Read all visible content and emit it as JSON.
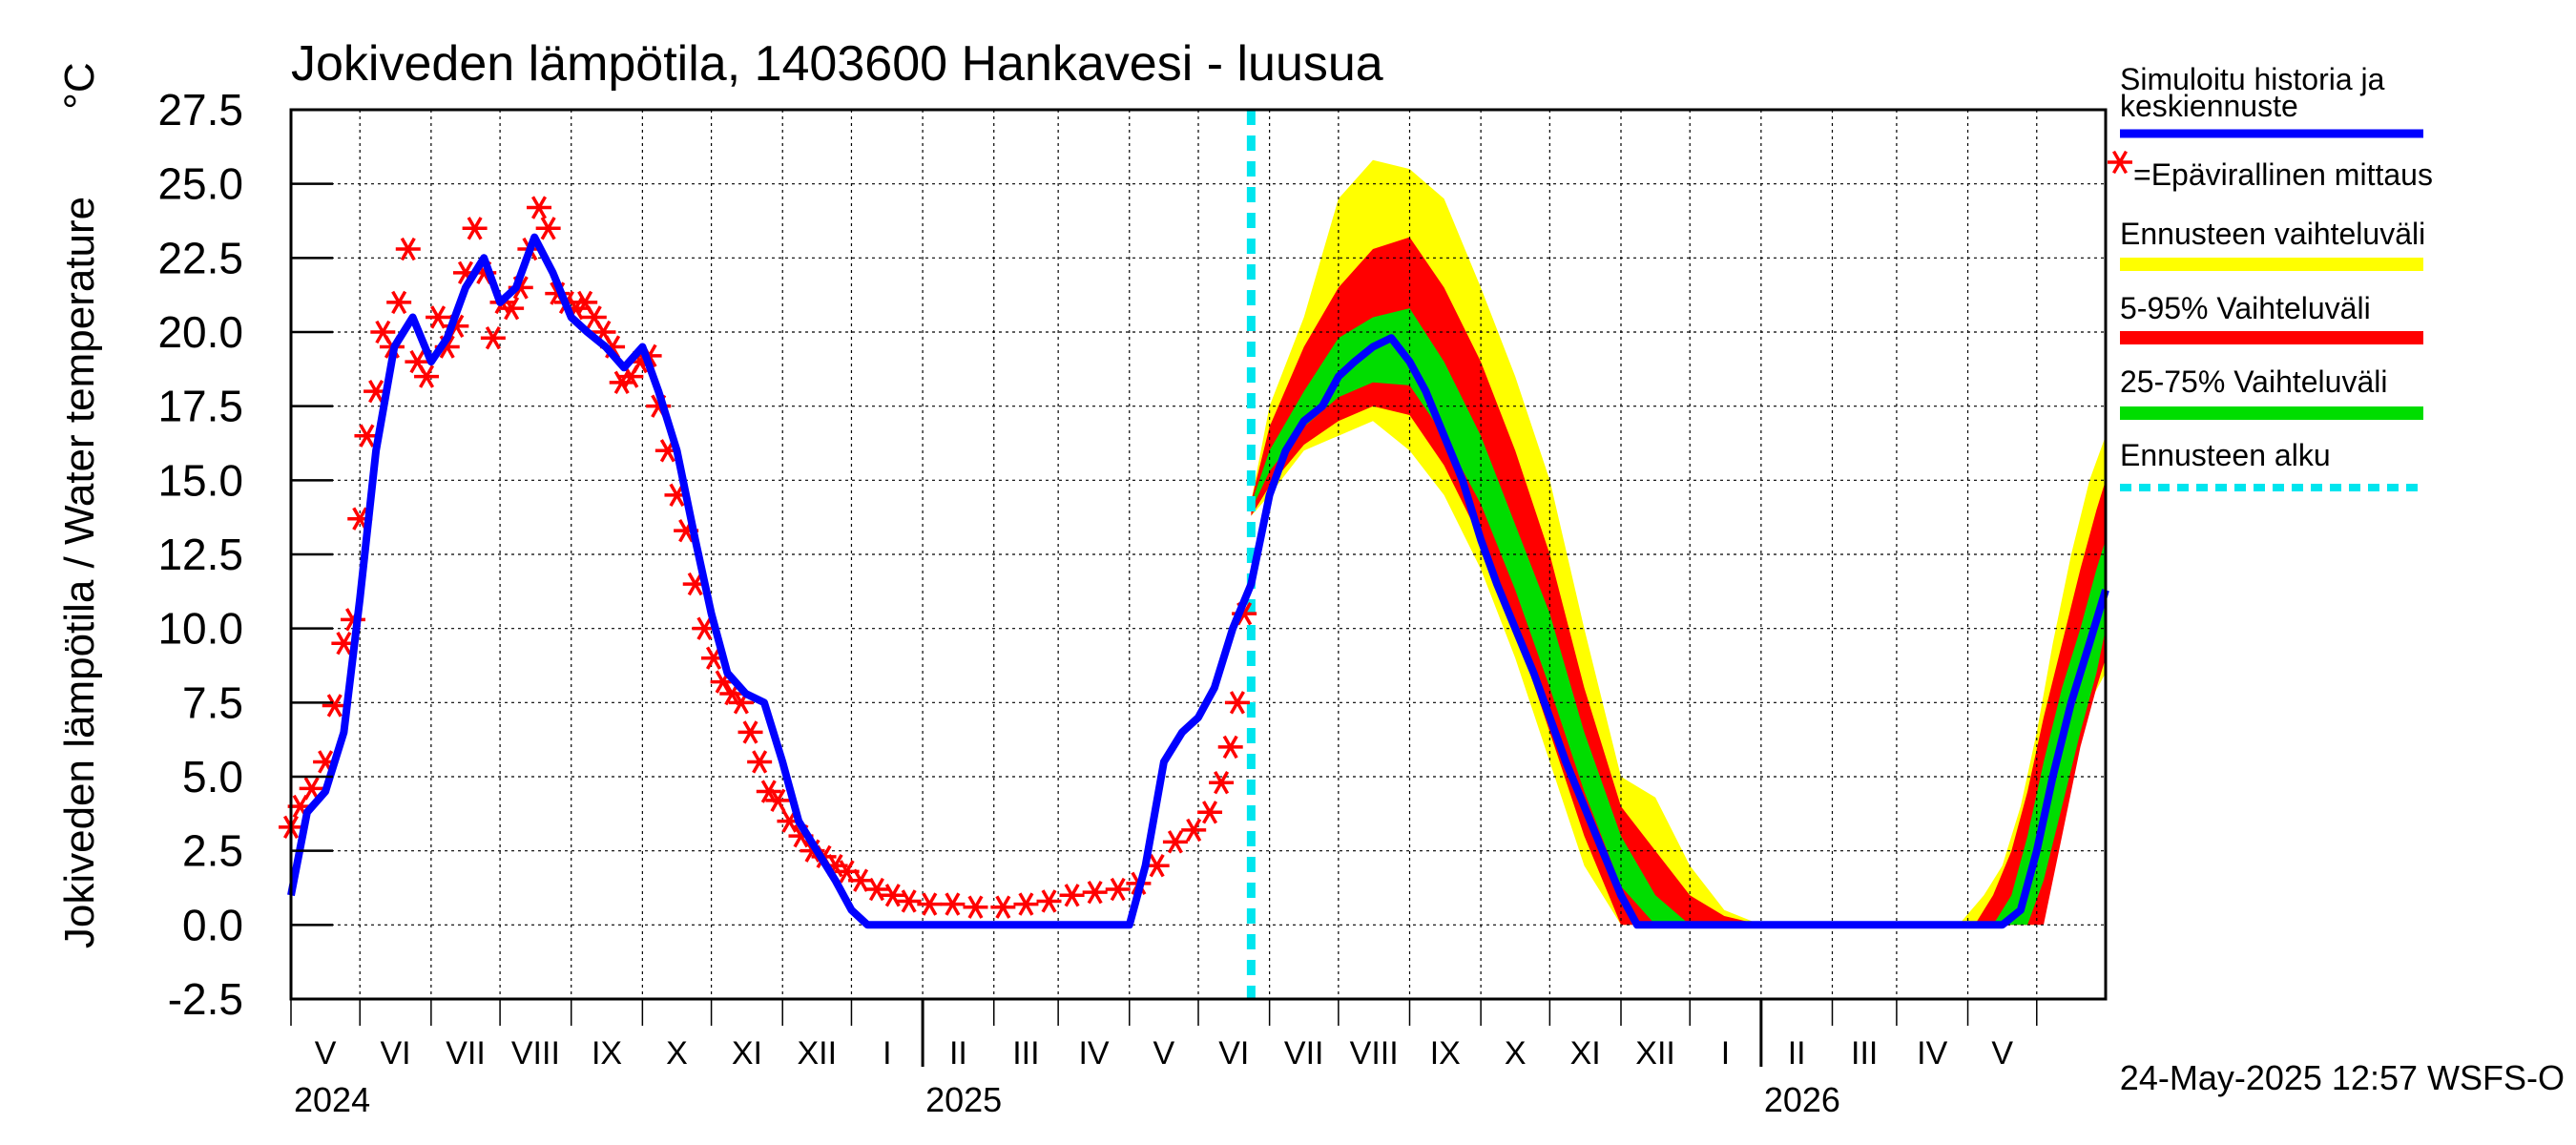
{
  "chart_data": {
    "type": "line",
    "title": "Jokiveden lämpötila, 1403600 Hankavesi - luusua",
    "ylabel": "Jokiveden lämpötila / Water temperature",
    "yunit": "°C",
    "ylim": [
      -2.5,
      27.5
    ],
    "yticks": [
      "27.5",
      "25.0",
      "22.5",
      "20.0",
      "17.5",
      "15.0",
      "12.5",
      "10.0",
      "7.5",
      "5.0",
      "2.5",
      "0.0",
      "-2.5"
    ],
    "x_range": [
      "2024-04-01",
      "2026-05-31"
    ],
    "month_labels": [
      "V",
      "VI",
      "VII",
      "VIII",
      "IX",
      "X",
      "XI",
      "XII",
      "I",
      "II",
      "III",
      "IV",
      "V",
      "VI",
      "VII",
      "VIII",
      "IX",
      "X",
      "XI",
      "XII",
      "I",
      "II",
      "III",
      "IV",
      "V"
    ],
    "year_labels": [
      "2024",
      "2025",
      "2026"
    ],
    "forecast_start": "2025-05-24",
    "timestamp": "24-May-2025 12:57 WSFS-O",
    "grid": true,
    "legend_position": "right",
    "legend": [
      {
        "label": "Simuloitu historia ja keskiennuste",
        "color": "#0000ff",
        "style": "line"
      },
      {
        "label": "=Epävirallinen mittaus",
        "color": "#ff0000",
        "style": "star"
      },
      {
        "label": "Ennusteen vaihteluväli",
        "color": "#ffff00",
        "style": "band"
      },
      {
        "label": "5-95% Vaihteluväli",
        "color": "#ff0000",
        "style": "band"
      },
      {
        "label": "25-75% Vaihteluväli",
        "color": "#00dd00",
        "style": "band"
      },
      {
        "label": "Ennusteen alku",
        "color": "#00e5ee",
        "style": "dashed"
      }
    ],
    "colors": {
      "sim": "#0000ff",
      "obs": "#ff0000",
      "full_band": "#ffff00",
      "p5_95": "#ff0000",
      "p25_75": "#00dd00",
      "forecast_start": "#00e5ee"
    },
    "series": [
      {
        "name": "Simuloitu historia ja keskiennuste",
        "x": [
          "2024-04-01",
          "2024-04-08",
          "2024-04-16",
          "2024-04-24",
          "2024-05-01",
          "2024-05-08",
          "2024-05-16",
          "2024-05-24",
          "2024-06-01",
          "2024-06-08",
          "2024-06-16",
          "2024-06-24",
          "2024-07-01",
          "2024-07-08",
          "2024-07-16",
          "2024-07-24",
          "2024-08-01",
          "2024-08-08",
          "2024-08-16",
          "2024-08-24",
          "2024-09-01",
          "2024-09-08",
          "2024-09-16",
          "2024-09-24",
          "2024-10-01",
          "2024-10-08",
          "2024-10-16",
          "2024-10-24",
          "2024-11-01",
          "2024-11-08",
          "2024-11-16",
          "2024-11-24",
          "2024-12-01",
          "2024-12-08",
          "2024-12-16",
          "2024-12-24",
          "2025-01-01",
          "2025-01-16",
          "2025-02-01",
          "2025-02-16",
          "2025-03-01",
          "2025-03-16",
          "2025-04-01",
          "2025-04-08",
          "2025-04-16",
          "2025-04-24",
          "2025-05-01",
          "2025-05-08",
          "2025-05-16",
          "2025-05-24",
          "2025-06-01",
          "2025-06-08",
          "2025-06-16",
          "2025-06-24",
          "2025-07-01",
          "2025-07-08",
          "2025-07-16",
          "2025-07-24",
          "2025-08-01",
          "2025-08-08",
          "2025-08-16",
          "2025-08-24",
          "2025-09-01",
          "2025-09-08",
          "2025-09-16",
          "2025-09-24",
          "2025-10-01",
          "2025-10-08",
          "2025-10-16",
          "2025-10-24",
          "2025-11-01",
          "2025-11-08",
          "2025-11-16",
          "2025-11-24",
          "2025-12-01",
          "2025-12-16",
          "2026-01-01",
          "2026-01-16",
          "2026-02-01",
          "2026-02-16",
          "2026-03-01",
          "2026-03-16",
          "2026-04-01",
          "2026-04-08",
          "2026-04-16",
          "2026-04-24",
          "2026-05-01",
          "2026-05-08",
          "2026-05-16",
          "2026-05-24",
          "2026-05-31"
        ],
        "values": [
          1.0,
          3.8,
          4.5,
          6.5,
          11.0,
          16.0,
          19.5,
          20.5,
          19.0,
          19.8,
          21.5,
          22.5,
          21.0,
          21.5,
          23.2,
          22.0,
          20.5,
          20.0,
          19.5,
          18.8,
          19.5,
          18.0,
          16.0,
          13.0,
          10.5,
          8.5,
          7.8,
          7.5,
          5.5,
          3.5,
          2.5,
          1.5,
          0.5,
          0.0,
          0.0,
          0.0,
          0.0,
          0.0,
          0.0,
          0.0,
          0.0,
          0.0,
          0.0,
          2.0,
          5.5,
          6.5,
          7.0,
          8.0,
          10.0,
          11.5,
          14.5,
          16.0,
          17.0,
          17.5,
          18.5,
          19.0,
          19.5,
          19.8,
          19.0,
          18.0,
          16.5,
          15.0,
          13.0,
          11.5,
          10.0,
          8.5,
          7.0,
          5.5,
          4.0,
          2.5,
          1.0,
          0.0,
          0.0,
          0.0,
          0.0,
          0.0,
          0.0,
          0.0,
          0.0,
          0.0,
          0.0,
          0.0,
          0.0,
          0.0,
          0.0,
          0.5,
          2.5,
          5.0,
          7.5,
          9.5,
          11.3
        ]
      },
      {
        "name": "=Epävirallinen mittaus",
        "x": [
          "2024-04-01",
          "2024-04-05",
          "2024-04-10",
          "2024-04-16",
          "2024-04-20",
          "2024-04-24",
          "2024-04-28",
          "2024-05-01",
          "2024-05-04",
          "2024-05-08",
          "2024-05-11",
          "2024-05-15",
          "2024-05-18",
          "2024-05-22",
          "2024-05-26",
          "2024-05-30",
          "2024-06-04",
          "2024-06-08",
          "2024-06-12",
          "2024-06-16",
          "2024-06-20",
          "2024-06-24",
          "2024-06-28",
          "2024-07-02",
          "2024-07-06",
          "2024-07-10",
          "2024-07-14",
          "2024-07-18",
          "2024-07-22",
          "2024-07-26",
          "2024-07-30",
          "2024-08-03",
          "2024-08-07",
          "2024-08-11",
          "2024-08-15",
          "2024-08-19",
          "2024-08-23",
          "2024-08-27",
          "2024-08-31",
          "2024-09-04",
          "2024-09-08",
          "2024-09-12",
          "2024-09-16",
          "2024-09-20",
          "2024-09-24",
          "2024-09-28",
          "2024-10-02",
          "2024-10-06",
          "2024-10-10",
          "2024-10-14",
          "2024-10-18",
          "2024-10-22",
          "2024-10-26",
          "2024-10-30",
          "2024-11-04",
          "2024-11-09",
          "2024-11-14",
          "2024-11-19",
          "2024-11-24",
          "2024-11-29",
          "2024-12-05",
          "2024-12-12",
          "2024-12-19",
          "2024-12-26",
          "2025-01-04",
          "2025-01-14",
          "2025-01-24",
          "2025-02-05",
          "2025-02-15",
          "2025-02-25",
          "2025-03-07",
          "2025-03-17",
          "2025-03-27",
          "2025-04-05",
          "2025-04-13",
          "2025-04-21",
          "2025-04-29",
          "2025-05-06",
          "2025-05-11",
          "2025-05-15",
          "2025-05-18",
          "2025-05-21"
        ],
        "values": [
          3.3,
          4.0,
          4.6,
          5.5,
          7.4,
          9.5,
          10.3,
          13.7,
          16.5,
          18.0,
          20.0,
          19.5,
          21.0,
          22.8,
          19.0,
          18.5,
          20.5,
          19.5,
          20.2,
          22.0,
          23.5,
          22.0,
          19.8,
          21.0,
          20.8,
          21.5,
          22.8,
          24.2,
          23.5,
          21.3,
          21.0,
          20.8,
          21.0,
          20.5,
          20.0,
          19.5,
          18.3,
          18.5,
          19.0,
          19.2,
          17.5,
          16.0,
          14.5,
          13.3,
          11.5,
          10.0,
          9.0,
          8.2,
          7.8,
          7.5,
          6.5,
          5.5,
          4.5,
          4.2,
          3.5,
          3.0,
          2.5,
          2.3,
          2.0,
          1.8,
          1.5,
          1.2,
          1.0,
          0.8,
          0.7,
          0.7,
          0.6,
          0.6,
          0.7,
          0.8,
          1.0,
          1.1,
          1.2,
          1.4,
          2.0,
          2.8,
          3.2,
          3.8,
          4.8,
          6.0,
          7.5,
          10.5
        ]
      }
    ],
    "bands": [
      {
        "name": "Ennusteen vaihteluväli",
        "x": [
          "2025-05-24",
          "2025-06-01",
          "2025-06-16",
          "2025-07-01",
          "2025-07-16",
          "2025-08-01",
          "2025-08-16",
          "2025-09-01",
          "2025-09-16",
          "2025-10-01",
          "2025-10-16",
          "2025-11-01",
          "2025-11-16",
          "2025-12-01",
          "2025-12-16",
          "2026-01-01"
        ],
        "lower": [
          13.8,
          14.5,
          16.0,
          16.5,
          17.0,
          16.0,
          14.5,
          12.0,
          9.0,
          5.5,
          2.0,
          0.0,
          0.0,
          0.0,
          0.0,
          0.0
        ],
        "upper": [
          14.3,
          17.5,
          20.5,
          24.5,
          25.8,
          25.5,
          24.5,
          21.5,
          18.5,
          15.0,
          10.0,
          5.0,
          4.3,
          2.0,
          0.5,
          0.0
        ]
      },
      {
        "name": "5-95% Vaihteluväli",
        "x": [
          "2025-05-24",
          "2025-06-01",
          "2025-06-16",
          "2025-07-01",
          "2025-07-16",
          "2025-08-01",
          "2025-08-16",
          "2025-09-01",
          "2025-09-16",
          "2025-10-01",
          "2025-10-16",
          "2025-11-01",
          "2025-11-16",
          "2025-12-01",
          "2025-12-16",
          "2026-01-01"
        ],
        "lower": [
          13.8,
          14.8,
          16.2,
          17.0,
          17.5,
          17.2,
          15.5,
          13.0,
          10.0,
          6.5,
          3.0,
          0.0,
          0.0,
          0.0,
          0.0,
          0.0
        ],
        "upper": [
          14.3,
          16.8,
          19.5,
          21.5,
          22.8,
          23.2,
          21.5,
          19.0,
          16.0,
          12.5,
          8.0,
          4.0,
          2.5,
          1.0,
          0.3,
          0.0
        ]
      },
      {
        "name": "25-75% Vaihteluväli",
        "x": [
          "2025-05-24",
          "2025-06-01",
          "2025-06-16",
          "2025-07-01",
          "2025-07-16",
          "2025-08-01",
          "2025-08-16",
          "2025-09-01",
          "2025-09-16",
          "2025-10-01",
          "2025-10-16",
          "2025-11-01",
          "2025-11-16",
          "2025-12-01"
        ],
        "lower": [
          14.0,
          15.3,
          16.8,
          17.8,
          18.3,
          18.2,
          16.5,
          14.2,
          11.3,
          8.0,
          4.5,
          1.3,
          0.0,
          0.0
        ],
        "upper": [
          14.2,
          16.0,
          18.0,
          19.8,
          20.5,
          20.8,
          19.0,
          16.5,
          13.5,
          10.5,
          6.5,
          3.0,
          1.0,
          0.0
        ]
      },
      {
        "name": "Ennusteen vaihteluväli",
        "x": [
          "2026-03-28",
          "2026-04-08",
          "2026-04-16",
          "2026-04-24",
          "2026-05-01",
          "2026-05-08",
          "2026-05-16",
          "2026-05-24",
          "2026-05-31"
        ],
        "lower": [
          0.0,
          0.0,
          0.0,
          0.0,
          0.0,
          2.5,
          5.5,
          7.5,
          8.5
        ],
        "upper": [
          0.0,
          1.0,
          2.0,
          4.0,
          6.5,
          9.5,
          12.5,
          15.0,
          16.5
        ]
      },
      {
        "name": "5-95% Vaihteluväli",
        "x": [
          "2026-04-04",
          "2026-04-12",
          "2026-04-20",
          "2026-04-27",
          "2026-05-04",
          "2026-05-12",
          "2026-05-20",
          "2026-05-27",
          "2026-05-31"
        ],
        "lower": [
          0.0,
          0.0,
          0.0,
          0.0,
          0.0,
          3.0,
          6.0,
          8.0,
          9.0
        ],
        "upper": [
          0.0,
          1.0,
          2.5,
          4.5,
          7.0,
          9.5,
          12.0,
          14.0,
          15.0
        ]
      },
      {
        "name": "25-75% Vaihteluväli",
        "x": [
          "2026-04-12",
          "2026-04-20",
          "2026-04-27",
          "2026-05-04",
          "2026-05-12",
          "2026-05-20",
          "2026-05-27",
          "2026-05-31"
        ],
        "lower": [
          0.0,
          0.0,
          0.0,
          1.5,
          4.0,
          6.5,
          8.5,
          10.0
        ],
        "upper": [
          0.0,
          1.0,
          3.0,
          5.5,
          8.0,
          10.0,
          12.0,
          13.0
        ]
      }
    ]
  }
}
